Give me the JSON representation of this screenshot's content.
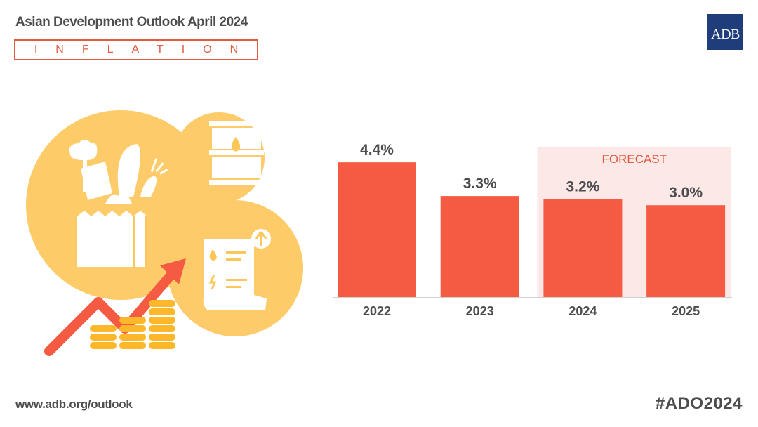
{
  "header": {
    "title": "Asian Development Outlook April 2024",
    "subtitle": "INFLATION",
    "logo_text": "ADB"
  },
  "footer": {
    "url": "www.adb.org/outlook",
    "hashtag": "#ADO2024"
  },
  "illustration": {
    "icons": [
      "grocery-bag-icon",
      "oil-barrel-icon",
      "utility-bill-icon",
      "rising-arrow-icon",
      "coin-stacks-icon"
    ]
  },
  "colors": {
    "bar": "#f55a42",
    "forecast_bg": "#fde8e8",
    "forecast_text": "#e35a40",
    "text": "#4d4d4f",
    "circle": "#fdc659",
    "logo_bg": "#1f3d7a"
  },
  "chart_data": {
    "type": "bar",
    "title": "INFLATION",
    "categories": [
      "2022",
      "2023",
      "2024",
      "2025"
    ],
    "values": [
      4.4,
      3.3,
      3.2,
      3.0
    ],
    "labels": [
      "4.4%",
      "3.3%",
      "3.2%",
      "3.0%"
    ],
    "unit": "%",
    "forecast": {
      "label": "FORECAST",
      "categories": [
        "2024",
        "2025"
      ]
    },
    "xlabel": "",
    "ylabel": "",
    "ylim": [
      0,
      4.4
    ],
    "grid": false,
    "legend": "none"
  }
}
